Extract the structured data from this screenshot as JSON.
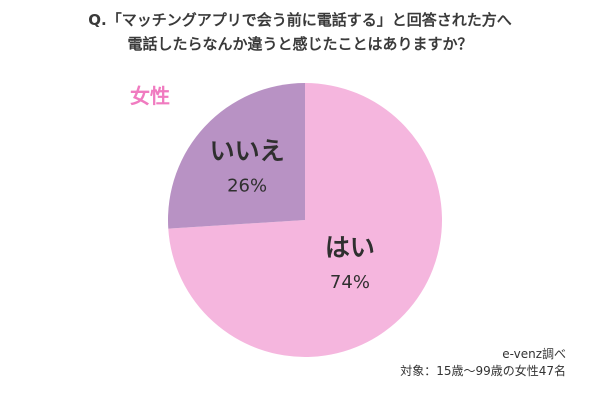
{
  "title_lines": [
    "Q.「マッチングアプリで会う前に電話する」と回答された方へ",
    "電話したらなんか違うと感じたことはありますか？"
  ],
  "gender_label": "女性",
  "credit": {
    "source": "e-venz調べ",
    "target": "対象：15歳〜99歳の女性47名"
  },
  "chart_data": {
    "type": "pie",
    "title": "",
    "categories": [
      "はい",
      "いいえ"
    ],
    "values": [
      74,
      26
    ],
    "value_labels": [
      "74%",
      "26%"
    ],
    "colors": [
      "#f5b6de",
      "#b892c4"
    ],
    "start": "top",
    "direction": "counterclockwise-from-top-for-first-slice-clockwise"
  }
}
